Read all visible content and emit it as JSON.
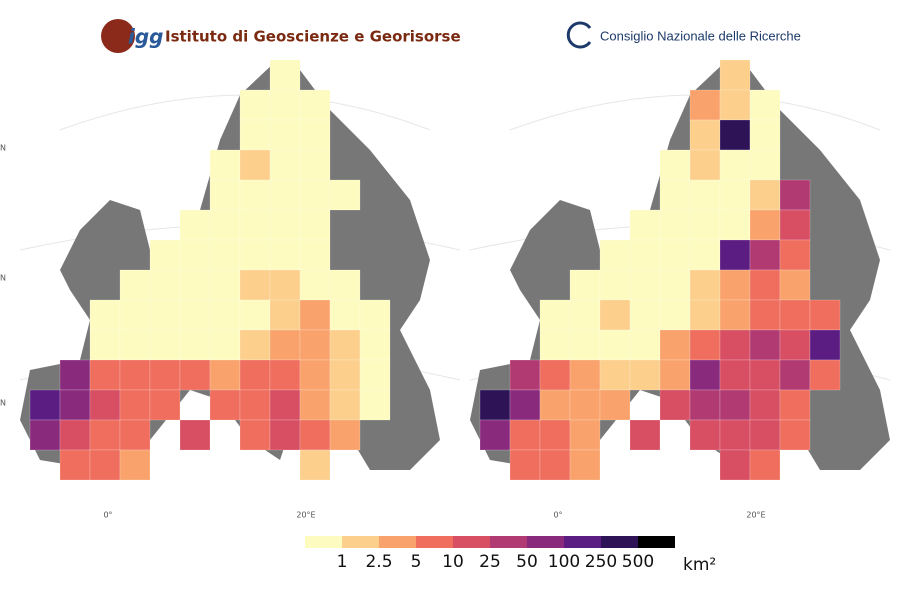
{
  "header": {
    "left_logo": "igg",
    "left_title": "Istituto di Geoscienze e Georisorse",
    "right_title": "Consiglio Nazionale delle Ricerche"
  },
  "maps": [
    {
      "x_labels": [
        "0°",
        "20°E"
      ],
      "y_labels": [
        "N",
        "N",
        "N"
      ],
      "cells": [
        [
          null,
          null,
          null,
          null,
          null,
          null,
          null,
          null,
          0,
          null,
          null,
          null,
          null
        ],
        [
          null,
          null,
          null,
          null,
          null,
          null,
          null,
          0,
          0,
          0,
          null,
          null,
          null
        ],
        [
          null,
          null,
          null,
          null,
          null,
          null,
          null,
          0,
          0,
          0,
          null,
          null,
          null
        ],
        [
          null,
          null,
          null,
          null,
          null,
          null,
          0,
          1,
          0,
          0,
          null,
          null,
          null
        ],
        [
          null,
          null,
          null,
          null,
          null,
          null,
          0,
          0,
          0,
          0,
          0,
          null,
          null
        ],
        [
          null,
          null,
          null,
          null,
          null,
          0,
          0,
          0,
          0,
          0,
          null,
          null,
          null
        ],
        [
          null,
          null,
          null,
          null,
          0,
          0,
          0,
          0,
          0,
          0,
          null,
          null,
          null
        ],
        [
          null,
          null,
          null,
          0,
          0,
          0,
          0,
          1,
          1,
          0,
          0,
          null,
          null
        ],
        [
          null,
          null,
          0,
          0,
          0,
          0,
          0,
          0,
          1,
          2,
          0,
          0,
          null
        ],
        [
          null,
          null,
          0,
          0,
          0,
          0,
          0,
          1,
          2,
          2,
          1,
          0,
          null
        ],
        [
          null,
          6,
          3,
          3,
          3,
          3,
          2,
          3,
          3,
          2,
          1,
          0,
          null
        ],
        [
          7,
          6,
          4,
          3,
          3,
          null,
          3,
          3,
          4,
          2,
          1,
          0,
          null
        ],
        [
          6,
          4,
          3,
          3,
          null,
          4,
          null,
          3,
          4,
          3,
          2,
          null,
          null
        ],
        [
          null,
          3,
          3,
          2,
          null,
          null,
          null,
          null,
          null,
          1,
          null,
          null,
          null
        ]
      ]
    },
    {
      "x_labels": [
        "0°",
        "20°E"
      ],
      "cells": [
        [
          null,
          null,
          null,
          null,
          null,
          null,
          null,
          null,
          1,
          null,
          null,
          null,
          null
        ],
        [
          null,
          null,
          null,
          null,
          null,
          null,
          null,
          2,
          1,
          0,
          null,
          null,
          null
        ],
        [
          null,
          null,
          null,
          null,
          null,
          null,
          null,
          1,
          8,
          0,
          null,
          null,
          null
        ],
        [
          null,
          null,
          null,
          null,
          null,
          null,
          0,
          1,
          0,
          0,
          null,
          null,
          null
        ],
        [
          null,
          null,
          null,
          null,
          null,
          null,
          0,
          0,
          0,
          1,
          5,
          null,
          null
        ],
        [
          null,
          null,
          null,
          null,
          null,
          0,
          0,
          0,
          0,
          2,
          4,
          null,
          null
        ],
        [
          null,
          null,
          null,
          null,
          0,
          0,
          0,
          0,
          7,
          5,
          3,
          null,
          null
        ],
        [
          null,
          null,
          null,
          0,
          0,
          0,
          0,
          1,
          2,
          3,
          2,
          null,
          null
        ],
        [
          null,
          null,
          0,
          0,
          1,
          0,
          0,
          1,
          2,
          3,
          3,
          3,
          null
        ],
        [
          null,
          null,
          0,
          0,
          0,
          0,
          2,
          3,
          4,
          5,
          4,
          7,
          null
        ],
        [
          null,
          5,
          3,
          2,
          1,
          1,
          2,
          6,
          4,
          4,
          5,
          3,
          null
        ],
        [
          8,
          6,
          2,
          2,
          2,
          null,
          4,
          5,
          5,
          4,
          3,
          null,
          null
        ],
        [
          6,
          3,
          3,
          2,
          null,
          4,
          null,
          4,
          4,
          4,
          3,
          null,
          null
        ],
        [
          null,
          3,
          3,
          2,
          null,
          null,
          null,
          null,
          4,
          3,
          null,
          null,
          null
        ]
      ]
    }
  ],
  "legend": {
    "colors": [
      "#fdfbbf",
      "#fccf8c",
      "#f9a26b",
      "#ef6e5e",
      "#d84e63",
      "#b23a72",
      "#8a2a7d",
      "#5c1d82",
      "#2e1357",
      "#000000"
    ],
    "breaks": [
      1,
      2.5,
      5,
      10,
      25,
      50,
      100,
      250,
      500
    ],
    "unit": "km²"
  }
}
